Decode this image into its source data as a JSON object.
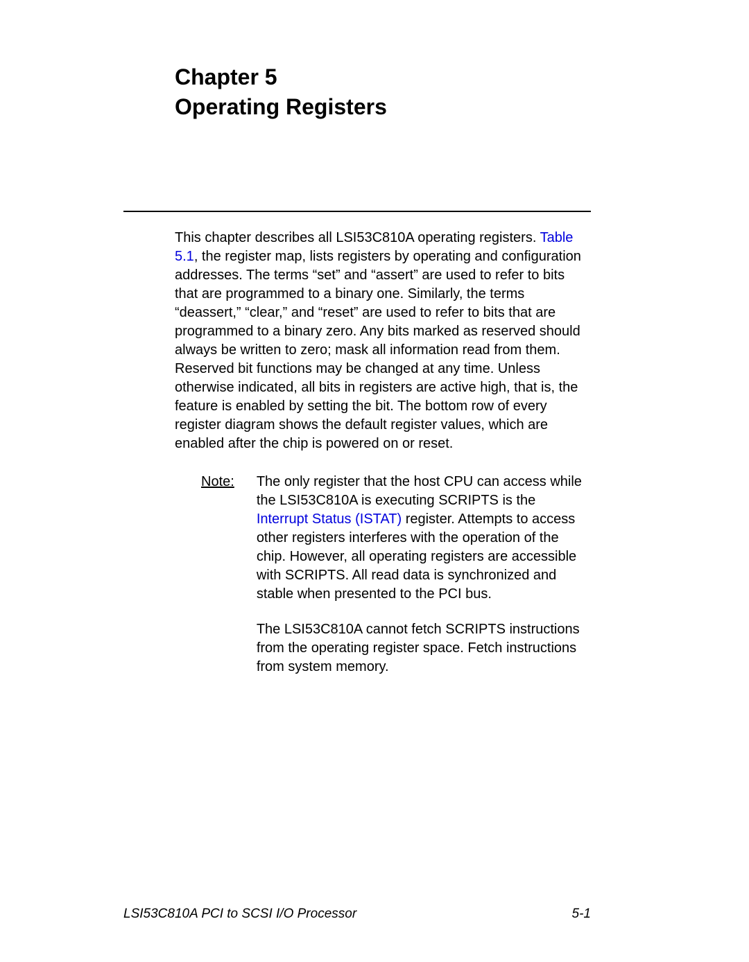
{
  "chapter": {
    "number": "Chapter 5",
    "title": "Operating Registers"
  },
  "body": {
    "para1_part1": "This chapter describes all LSI53C810A operating registers. ",
    "link_table": "Table 5.1",
    "para1_part2": ", the register map, lists registers by operating and configuration addresses. The terms “set” and “assert” are used to refer to bits that are programmed to a binary one. Similarly, the terms “deassert,” “clear,” and “reset” are used to refer to bits that are programmed to a binary zero. Any bits marked as reserved should always be written to zero; mask all information read from them. Reserved bit functions may be changed at any time. Unless otherwise indicated, all bits in registers are active high, that is, the feature is enabled by setting the bit. The bottom row of every register diagram shows the default register values, which are enabled after the chip is powered on or reset."
  },
  "note": {
    "label": "Note:",
    "para1_part1": "The only register that the host CPU can access while the LSI53C810A is executing SCRIPTS is the ",
    "link_istat": "Interrupt Status (ISTAT)",
    "para1_part2": " register. Attempts to access other registers interferes with the operation of the chip. However, all operating registers are accessible with SCRIPTS. All read data is synchronized and stable when presented to the PCI bus.",
    "para2": "The LSI53C810A cannot fetch SCRIPTS instructions from the operating register space. Fetch instructions from system memory."
  },
  "footer": {
    "left": "LSI53C810A PCI to SCSI I/O Processor",
    "right": "5-1"
  },
  "colors": {
    "link_color": "#0000dd",
    "text_color": "#000000",
    "background": "#ffffff",
    "divider_color": "#000000"
  },
  "typography": {
    "heading_fontsize": 32,
    "body_fontsize": 20,
    "footer_fontsize": 19,
    "line_height": 1.35
  }
}
